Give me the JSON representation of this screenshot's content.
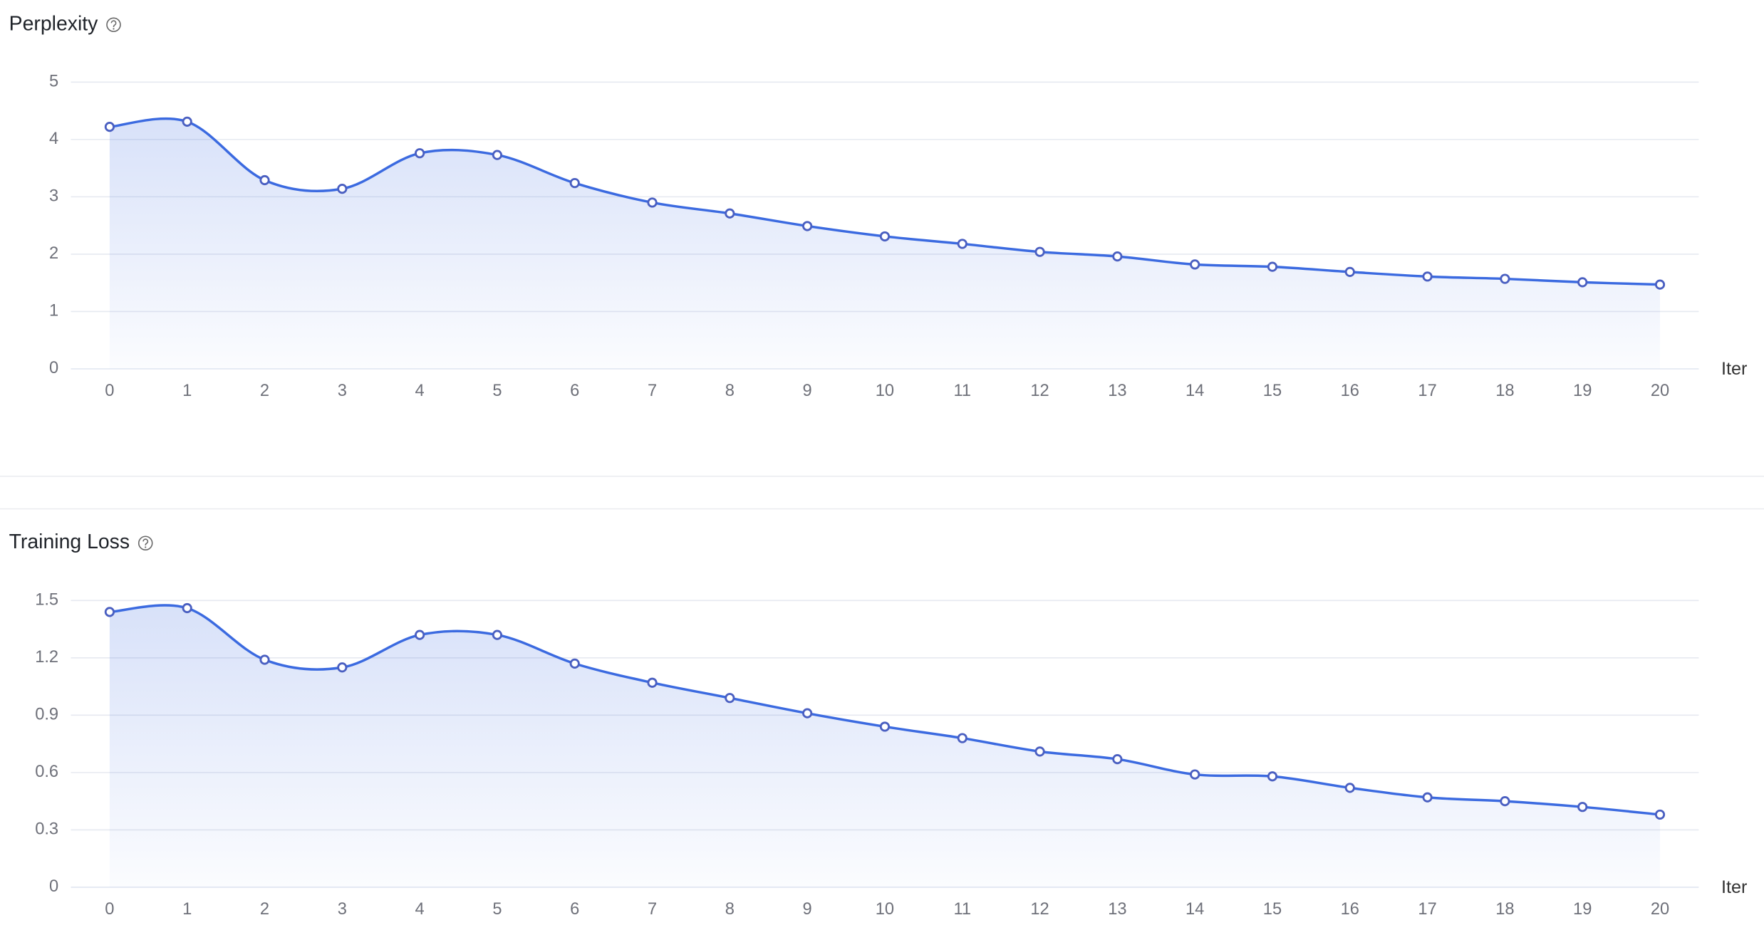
{
  "chart_data": [
    {
      "type": "line",
      "title": "Perplexity",
      "xlabel": "Iter",
      "x": [
        0,
        1,
        2,
        3,
        4,
        5,
        6,
        7,
        8,
        9,
        10,
        11,
        12,
        13,
        14,
        15,
        16,
        17,
        18,
        19,
        20
      ],
      "series": [
        {
          "color": "#3b6ae0",
          "values": [
            4.22,
            4.31,
            3.29,
            3.14,
            3.76,
            3.73,
            3.24,
            2.9,
            2.71,
            2.49,
            2.31,
            2.18,
            2.04,
            1.96,
            1.82,
            1.78,
            1.69,
            1.61,
            1.57,
            1.51,
            1.47
          ]
        }
      ],
      "xlim": [
        -0.5,
        20.5
      ],
      "xticks": [
        0,
        1,
        2,
        3,
        4,
        5,
        6,
        7,
        8,
        9,
        10,
        11,
        12,
        13,
        14,
        15,
        16,
        17,
        18,
        19,
        20
      ],
      "ylim": [
        0,
        5
      ],
      "yticks": [
        0,
        1,
        2,
        3,
        4,
        5
      ],
      "grid": true,
      "smooth": true,
      "area": true
    },
    {
      "type": "line",
      "title": "Training Loss",
      "xlabel": "Iter",
      "x": [
        0,
        1,
        2,
        3,
        4,
        5,
        6,
        7,
        8,
        9,
        10,
        11,
        12,
        13,
        14,
        15,
        16,
        17,
        18,
        19,
        20
      ],
      "series": [
        {
          "color": "#3b6ae0",
          "values": [
            1.44,
            1.46,
            1.19,
            1.15,
            1.32,
            1.32,
            1.17,
            1.07,
            0.99,
            0.91,
            0.84,
            0.78,
            0.71,
            0.67,
            0.59,
            0.58,
            0.52,
            0.47,
            0.45,
            0.42,
            0.38
          ]
        }
      ],
      "xlim": [
        -0.5,
        20.5
      ],
      "xticks": [
        0,
        1,
        2,
        3,
        4,
        5,
        6,
        7,
        8,
        9,
        10,
        11,
        12,
        13,
        14,
        15,
        16,
        17,
        18,
        19,
        20
      ],
      "ylim": [
        0,
        1.5
      ],
      "yticks": [
        0,
        0.3,
        0.6,
        0.9,
        1.2,
        1.5
      ],
      "grid": true,
      "smooth": true,
      "area": true
    }
  ]
}
